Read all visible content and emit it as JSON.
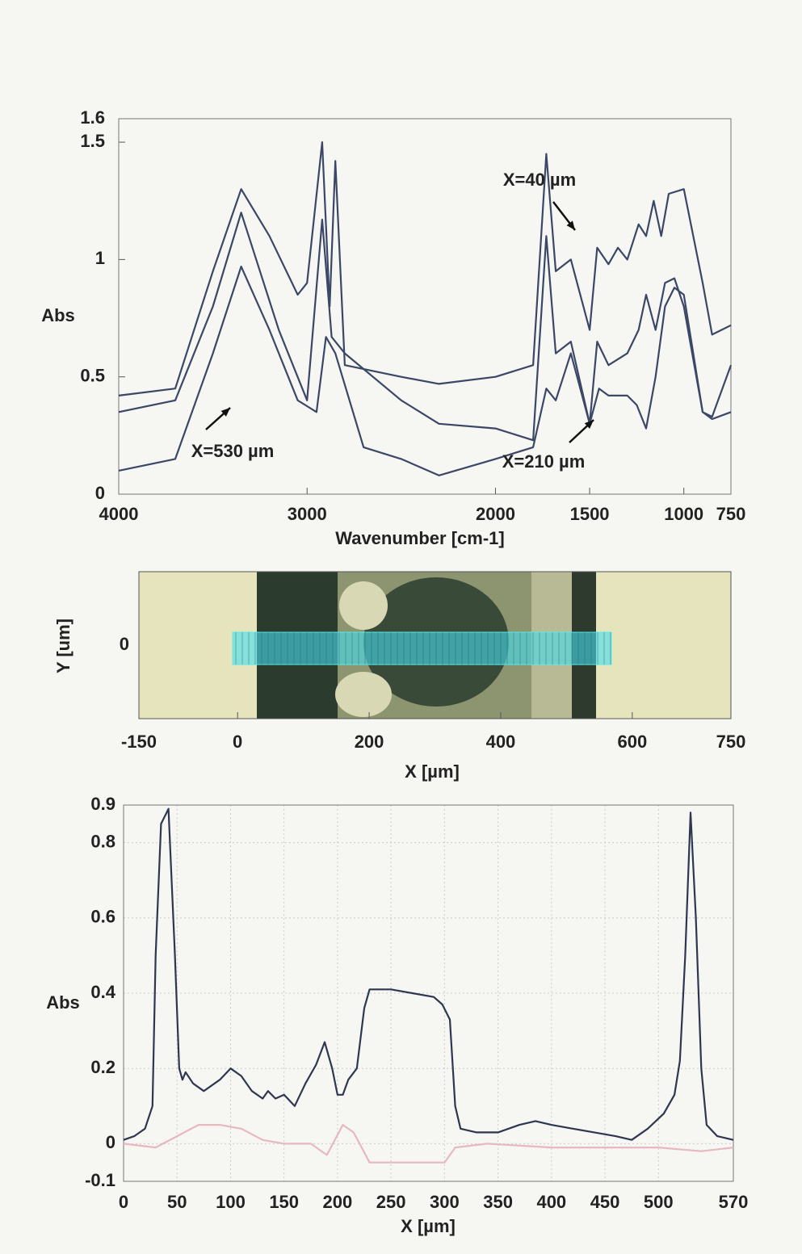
{
  "chart_data": [
    {
      "type": "line",
      "xlabel": "Wavenumber [cm-1]",
      "ylabel": "Abs",
      "xlim": [
        4000,
        750
      ],
      "xticks": [
        4000,
        3000,
        2000,
        1500,
        1000,
        750
      ],
      "ylim": [
        0,
        1.6
      ],
      "yticks": [
        0,
        0.5,
        1,
        1.5,
        1.6
      ],
      "grid": false,
      "series": [
        {
          "name": "X=40 µm",
          "color": "#3b4766",
          "x": [
            4000,
            3700,
            3500,
            3350,
            3200,
            3050,
            3000,
            2920,
            2880,
            2850,
            2800,
            2500,
            2300,
            2000,
            1800,
            1730,
            1680,
            1600,
            1500,
            1460,
            1400,
            1350,
            1300,
            1240,
            1200,
            1160,
            1120,
            1080,
            1000,
            900,
            850,
            800,
            750
          ],
          "values": [
            0.42,
            0.45,
            0.95,
            1.3,
            1.1,
            0.85,
            0.9,
            1.5,
            0.8,
            1.42,
            0.55,
            0.5,
            0.47,
            0.5,
            0.55,
            1.45,
            0.95,
            1.0,
            0.7,
            1.05,
            0.98,
            1.05,
            1.0,
            1.15,
            1.1,
            1.25,
            1.1,
            1.28,
            1.3,
            0.9,
            0.68,
            0.7,
            0.72
          ]
        },
        {
          "name": "X=530 µm",
          "color": "#3b4766",
          "x": [
            4000,
            3700,
            3500,
            3350,
            3150,
            3000,
            2920,
            2870,
            2800,
            2500,
            2300,
            2000,
            1800,
            1730,
            1680,
            1600,
            1500,
            1460,
            1400,
            1300,
            1240,
            1200,
            1150,
            1100,
            1050,
            1000,
            900,
            850,
            750
          ],
          "values": [
            0.35,
            0.4,
            0.8,
            1.2,
            0.7,
            0.4,
            1.17,
            0.67,
            0.6,
            0.4,
            0.3,
            0.28,
            0.23,
            1.1,
            0.6,
            0.65,
            0.3,
            0.65,
            0.55,
            0.6,
            0.7,
            0.85,
            0.7,
            0.9,
            0.92,
            0.8,
            0.35,
            0.33,
            0.55
          ]
        },
        {
          "name": "X=210 µm",
          "color": "#3b4766",
          "x": [
            4000,
            3700,
            3500,
            3350,
            3200,
            3050,
            2950,
            2900,
            2850,
            2700,
            2500,
            2300,
            2000,
            1800,
            1730,
            1680,
            1600,
            1500,
            1450,
            1400,
            1300,
            1250,
            1200,
            1150,
            1100,
            1050,
            1000,
            900,
            850,
            750
          ],
          "values": [
            0.1,
            0.15,
            0.6,
            0.97,
            0.7,
            0.4,
            0.35,
            0.67,
            0.6,
            0.2,
            0.15,
            0.08,
            0.15,
            0.2,
            0.45,
            0.4,
            0.6,
            0.3,
            0.45,
            0.42,
            0.42,
            0.38,
            0.28,
            0.5,
            0.8,
            0.88,
            0.85,
            0.35,
            0.32,
            0.35
          ]
        }
      ]
    },
    {
      "type": "image",
      "xlabel": "X [µm]",
      "ylabel": "Y [um]",
      "xlim": [
        -150,
        750
      ],
      "xticks": [
        -150,
        0,
        200,
        400,
        600,
        750
      ],
      "yticks": [
        0
      ]
    },
    {
      "type": "line",
      "xlabel": "X [µm]",
      "ylabel": "Abs",
      "xlim": [
        0,
        570
      ],
      "xticks": [
        0,
        50,
        100,
        150,
        200,
        250,
        300,
        350,
        400,
        450,
        500,
        570
      ],
      "ylim": [
        -0.1,
        0.9
      ],
      "yticks": [
        -0.1,
        0,
        0.2,
        0.4,
        0.6,
        0.8,
        0.9
      ],
      "grid": true,
      "series": [
        {
          "color": "#2f3650",
          "x": [
            0,
            10,
            20,
            27,
            30,
            35,
            42,
            48,
            52,
            55,
            58,
            65,
            75,
            90,
            100,
            110,
            120,
            130,
            135,
            142,
            150,
            160,
            170,
            180,
            188,
            195,
            200,
            205,
            210,
            218,
            225,
            230,
            250,
            270,
            290,
            298,
            305,
            310,
            315,
            330,
            350,
            370,
            385,
            400,
            420,
            440,
            460,
            475,
            490,
            505,
            515,
            520,
            525,
            530,
            535,
            540,
            545,
            555,
            570
          ],
          "values": [
            0.01,
            0.02,
            0.04,
            0.1,
            0.5,
            0.85,
            0.89,
            0.5,
            0.2,
            0.17,
            0.19,
            0.16,
            0.14,
            0.17,
            0.2,
            0.18,
            0.14,
            0.12,
            0.14,
            0.12,
            0.13,
            0.1,
            0.16,
            0.21,
            0.27,
            0.2,
            0.13,
            0.13,
            0.17,
            0.2,
            0.36,
            0.41,
            0.41,
            0.4,
            0.39,
            0.37,
            0.33,
            0.1,
            0.04,
            0.03,
            0.03,
            0.05,
            0.06,
            0.05,
            0.04,
            0.03,
            0.02,
            0.01,
            0.04,
            0.08,
            0.13,
            0.22,
            0.5,
            0.88,
            0.6,
            0.2,
            0.05,
            0.02,
            0.01
          ]
        },
        {
          "color": "#e7b8bf",
          "x": [
            0,
            30,
            50,
            70,
            90,
            110,
            130,
            150,
            175,
            190,
            205,
            215,
            230,
            260,
            300,
            310,
            340,
            400,
            450,
            500,
            540,
            570
          ],
          "values": [
            0,
            -0.01,
            0.02,
            0.05,
            0.05,
            0.04,
            0.01,
            0,
            0,
            -0.03,
            0.05,
            0.03,
            -0.05,
            -0.05,
            -0.05,
            -0.01,
            0,
            -0.01,
            -0.01,
            -0.01,
            -0.02,
            -0.01
          ]
        }
      ]
    }
  ]
}
